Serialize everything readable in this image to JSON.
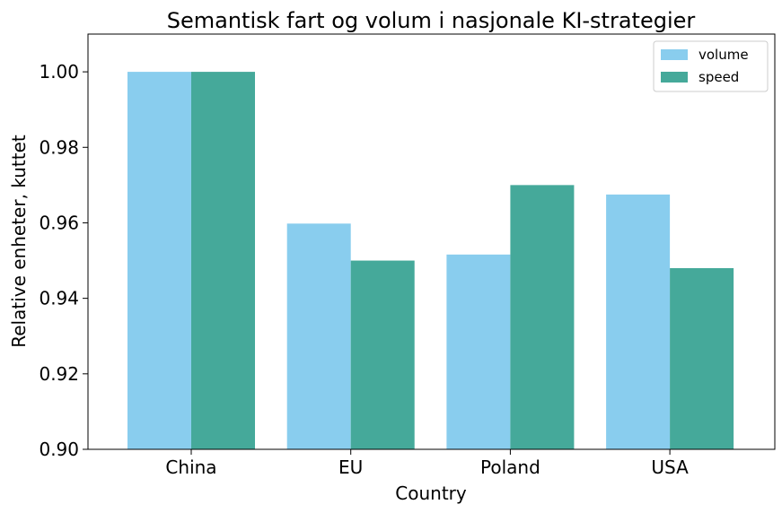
{
  "chart_data": {
    "type": "bar",
    "title": "Semantisk fart og volum i nasjonale KI-strategier",
    "xlabel": "Country",
    "ylabel": "Relative enheter, kuttet",
    "categories": [
      "China",
      "EU",
      "Poland",
      "USA"
    ],
    "series": [
      {
        "name": "volume",
        "color": "#89CDEE",
        "values": [
          1.0,
          0.9598,
          0.9516,
          0.9675
        ]
      },
      {
        "name": "speed",
        "color": "#45A99A",
        "values": [
          1.0,
          0.95,
          0.97,
          0.948
        ]
      }
    ],
    "ylim": [
      0.9,
      1.01
    ],
    "yticks": [
      "0.90",
      "0.92",
      "0.94",
      "0.96",
      "0.98",
      "1.00"
    ],
    "grid": false,
    "legend_position": "top-right"
  }
}
